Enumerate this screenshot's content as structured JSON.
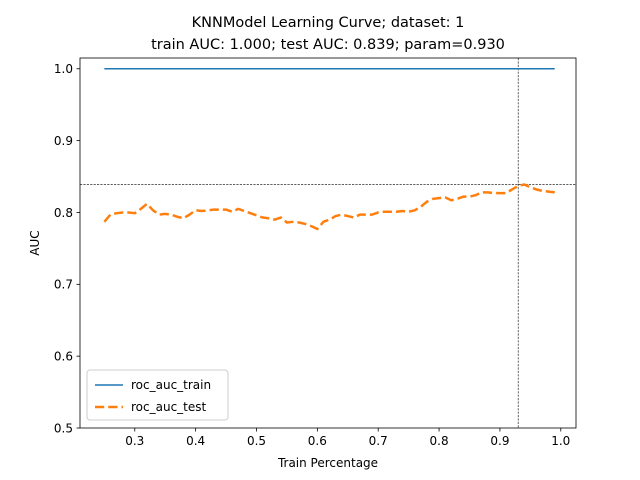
{
  "chart_data": {
    "type": "line",
    "title_line1": "KNNModel Learning Curve; dataset: 1",
    "title_line2": "train AUC: 1.000; test AUC: 0.839; param=0.930",
    "xlabel": "Train Percentage",
    "ylabel": "AUC",
    "xlim": [
      0.21,
      1.025
    ],
    "ylim": [
      0.5,
      1.015
    ],
    "xticks": [
      0.3,
      0.4,
      0.5,
      0.6,
      0.7,
      0.8,
      0.9,
      1.0
    ],
    "xtick_labels": [
      "0.3",
      "0.4",
      "0.5",
      "0.6",
      "0.7",
      "0.8",
      "0.9",
      "1.0"
    ],
    "yticks": [
      0.5,
      0.6,
      0.7,
      0.8,
      0.9,
      1.0
    ],
    "ytick_labels": [
      "0.5",
      "0.6",
      "0.7",
      "0.8",
      "0.9",
      "1.0"
    ],
    "legend_position": "lower-left",
    "reference_lines": {
      "vertical_x": 0.93,
      "horizontal_y": 0.839
    },
    "series": [
      {
        "name": "roc_auc_train",
        "color": "#1f77b4",
        "style": "solid",
        "x": [
          0.25,
          0.99
        ],
        "y": [
          1.0,
          1.0
        ]
      },
      {
        "name": "roc_auc_test",
        "color": "#ff7f0e",
        "style": "dashed",
        "x": [
          0.25,
          0.26,
          0.27,
          0.28,
          0.29,
          0.3,
          0.31,
          0.32,
          0.33,
          0.34,
          0.35,
          0.36,
          0.37,
          0.38,
          0.39,
          0.4,
          0.41,
          0.42,
          0.43,
          0.44,
          0.45,
          0.46,
          0.47,
          0.48,
          0.49,
          0.5,
          0.51,
          0.52,
          0.53,
          0.54,
          0.55,
          0.56,
          0.57,
          0.58,
          0.59,
          0.6,
          0.61,
          0.62,
          0.63,
          0.64,
          0.65,
          0.66,
          0.67,
          0.68,
          0.69,
          0.7,
          0.71,
          0.72,
          0.73,
          0.74,
          0.75,
          0.76,
          0.77,
          0.78,
          0.79,
          0.8,
          0.81,
          0.82,
          0.83,
          0.84,
          0.85,
          0.86,
          0.87,
          0.88,
          0.89,
          0.9,
          0.91,
          0.92,
          0.93,
          0.94,
          0.95,
          0.96,
          0.97,
          0.98,
          0.99
        ],
        "y": [
          0.787,
          0.797,
          0.799,
          0.8,
          0.8,
          0.799,
          0.805,
          0.812,
          0.803,
          0.797,
          0.798,
          0.797,
          0.794,
          0.792,
          0.797,
          0.803,
          0.802,
          0.803,
          0.804,
          0.804,
          0.804,
          0.801,
          0.805,
          0.802,
          0.799,
          0.796,
          0.793,
          0.792,
          0.79,
          0.793,
          0.786,
          0.787,
          0.786,
          0.784,
          0.781,
          0.777,
          0.787,
          0.79,
          0.795,
          0.797,
          0.795,
          0.793,
          0.797,
          0.797,
          0.797,
          0.8,
          0.801,
          0.801,
          0.801,
          0.802,
          0.801,
          0.803,
          0.808,
          0.815,
          0.819,
          0.82,
          0.821,
          0.817,
          0.819,
          0.822,
          0.822,
          0.824,
          0.828,
          0.828,
          0.827,
          0.827,
          0.827,
          0.832,
          0.837,
          0.839,
          0.835,
          0.832,
          0.83,
          0.829,
          0.828
        ]
      }
    ]
  }
}
